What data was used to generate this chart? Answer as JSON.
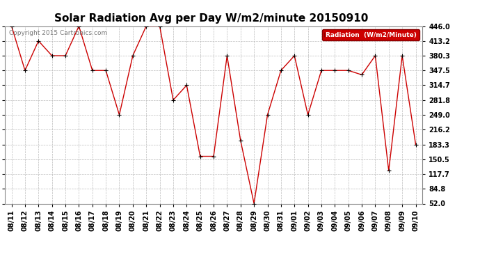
{
  "title": "Solar Radiation Avg per Day W/m2/minute 20150910",
  "copyright_text": "Copyright 2015 Cartronics.com",
  "legend_label": "Radiation  (W/m2/Minute)",
  "dates": [
    "08/11",
    "08/12",
    "08/13",
    "08/14",
    "08/15",
    "08/16",
    "08/17",
    "08/18",
    "08/19",
    "08/20",
    "08/21",
    "08/22",
    "08/23",
    "08/24",
    "08/25",
    "08/26",
    "08/27",
    "08/28",
    "08/29",
    "08/30",
    "08/31",
    "09/01",
    "09/02",
    "09/03",
    "09/04",
    "09/05",
    "09/06",
    "09/07",
    "09/08",
    "09/09",
    "09/10"
  ],
  "values": [
    446.0,
    347.5,
    413.2,
    380.3,
    380.3,
    446.0,
    347.5,
    347.5,
    249.0,
    380.3,
    446.0,
    446.0,
    281.8,
    314.7,
    157.0,
    157.0,
    380.3,
    192.0,
    52.0,
    249.0,
    347.5,
    380.3,
    249.0,
    347.5,
    347.5,
    347.5,
    338.0,
    380.3,
    125.0,
    380.3,
    183.3
  ],
  "y_ticks": [
    52.0,
    84.8,
    117.7,
    150.5,
    183.3,
    216.2,
    249.0,
    281.8,
    314.7,
    347.5,
    380.3,
    413.2,
    446.0
  ],
  "y_min": 52.0,
  "y_max": 446.0,
  "line_color": "#cc0000",
  "marker_color": "#000000",
  "bg_color": "#ffffff",
  "plot_bg_color": "#ffffff",
  "grid_color": "#bbbbbb",
  "legend_bg": "#cc0000",
  "legend_text_color": "#ffffff",
  "title_fontsize": 11,
  "tick_fontsize": 7,
  "copyright_fontsize": 6.5
}
